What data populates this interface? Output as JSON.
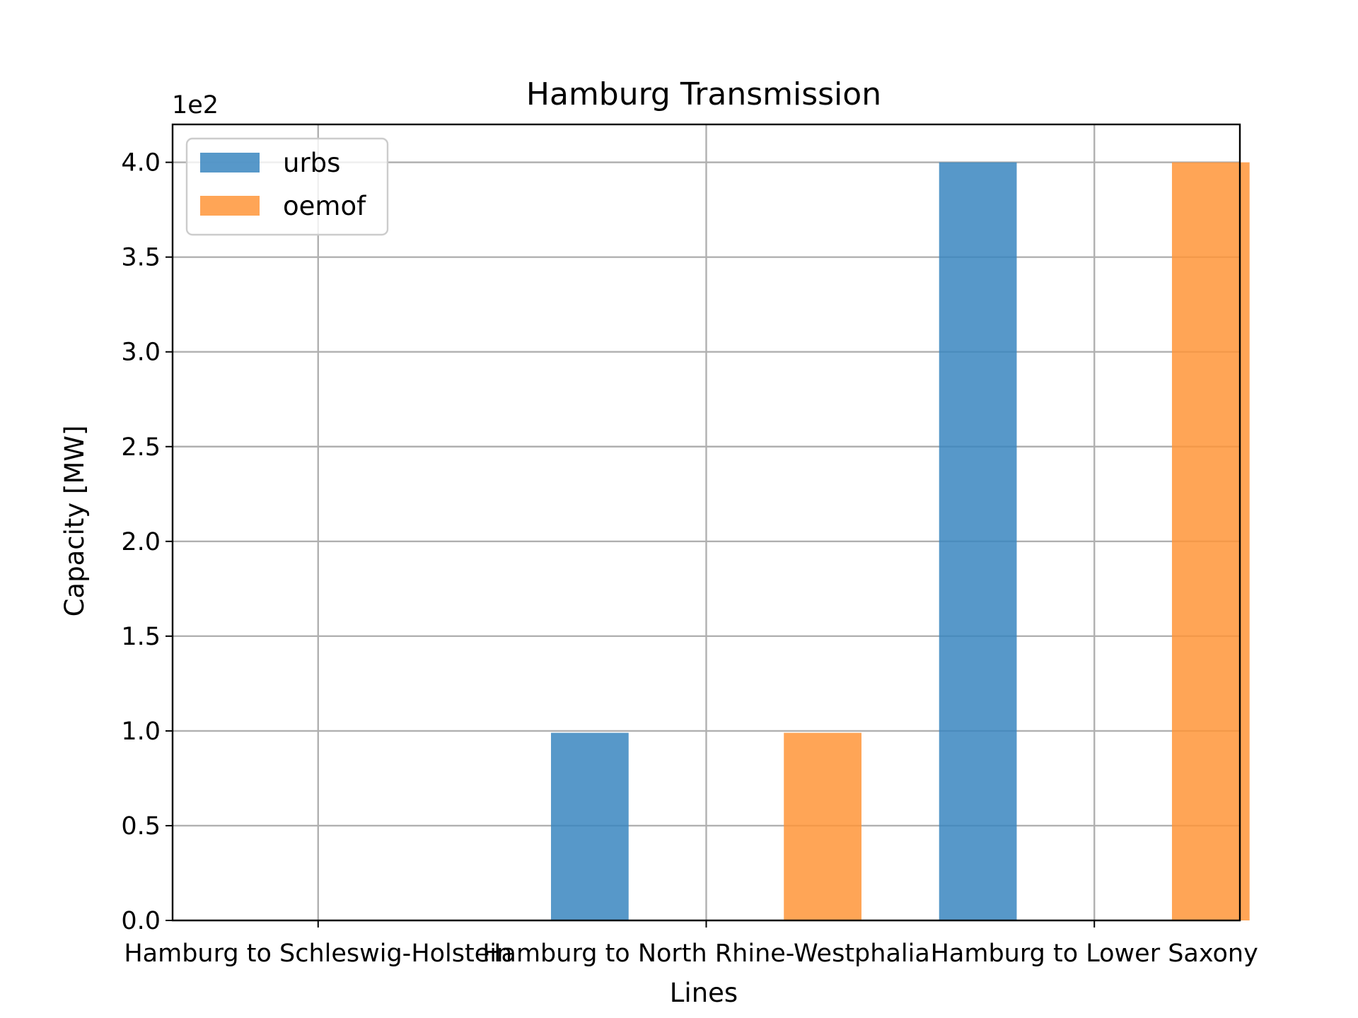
{
  "chart_data": {
    "type": "bar",
    "title": "Hamburg Transmission",
    "xlabel": "Lines",
    "ylabel": "Capacity [MW]",
    "y_offset_label": "1e2",
    "categories": [
      "Hamburg to Schleswig-Holstein",
      "Hamburg to North Rhine-Westphalia",
      "Hamburg to Lower Saxony"
    ],
    "series": [
      {
        "name": "urbs",
        "values": [
          0,
          99,
          400
        ],
        "color": "#3a86bf"
      },
      {
        "name": "oemof",
        "values": [
          0,
          99,
          400
        ],
        "color": "#ff9538"
      }
    ],
    "ylim": [
      0,
      420
    ],
    "yticks": [
      0,
      50,
      100,
      150,
      200,
      250,
      300,
      350,
      400
    ],
    "ytick_labels": [
      "0.0",
      "0.5",
      "1.0",
      "1.5",
      "2.0",
      "2.5",
      "3.0",
      "3.5",
      "4.0"
    ],
    "grid": true,
    "legend": "top-left"
  }
}
